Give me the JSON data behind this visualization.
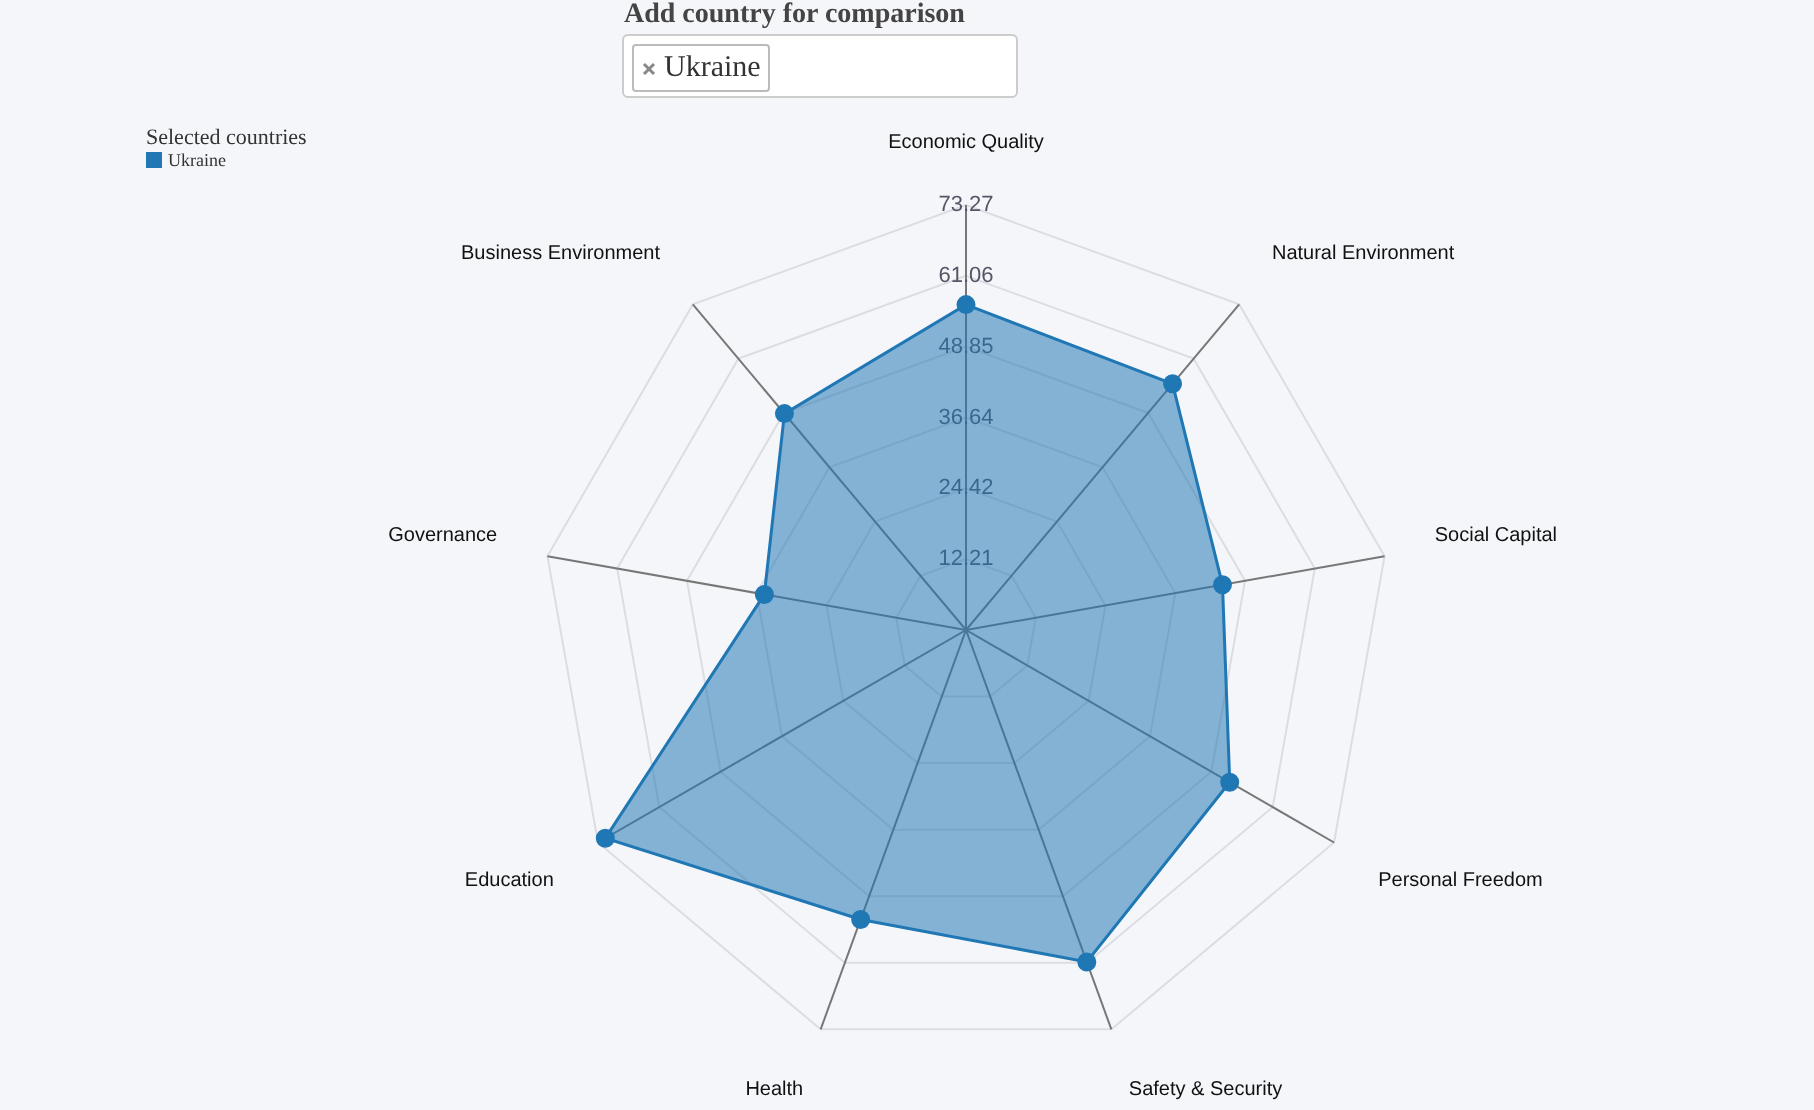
{
  "chart_data": {
    "type": "radar",
    "annotations": [
      "Add country for comparison"
    ],
    "categories": [
      "Economic Quality",
      "Natural Environment",
      "Social Capital",
      "Personal Freedom",
      "Safety & Security",
      "Health",
      "Education",
      "Governance",
      "Business Environment"
    ],
    "series": [
      {
        "name": "Ukraine",
        "color": "#1f77b4",
        "values": [
          56.1,
          55.4,
          44.9,
          52.5,
          60.9,
          53.1,
          71.8,
          35.3,
          48.7
        ]
      }
    ],
    "ylim": [
      0,
      73.27
    ],
    "yticks": [
      12.21,
      24.42,
      36.64,
      48.85,
      61.06,
      73.27
    ],
    "grid": true,
    "legend": "top left",
    "legend_title": "Selected countries",
    "marker": "circle"
  }
}
